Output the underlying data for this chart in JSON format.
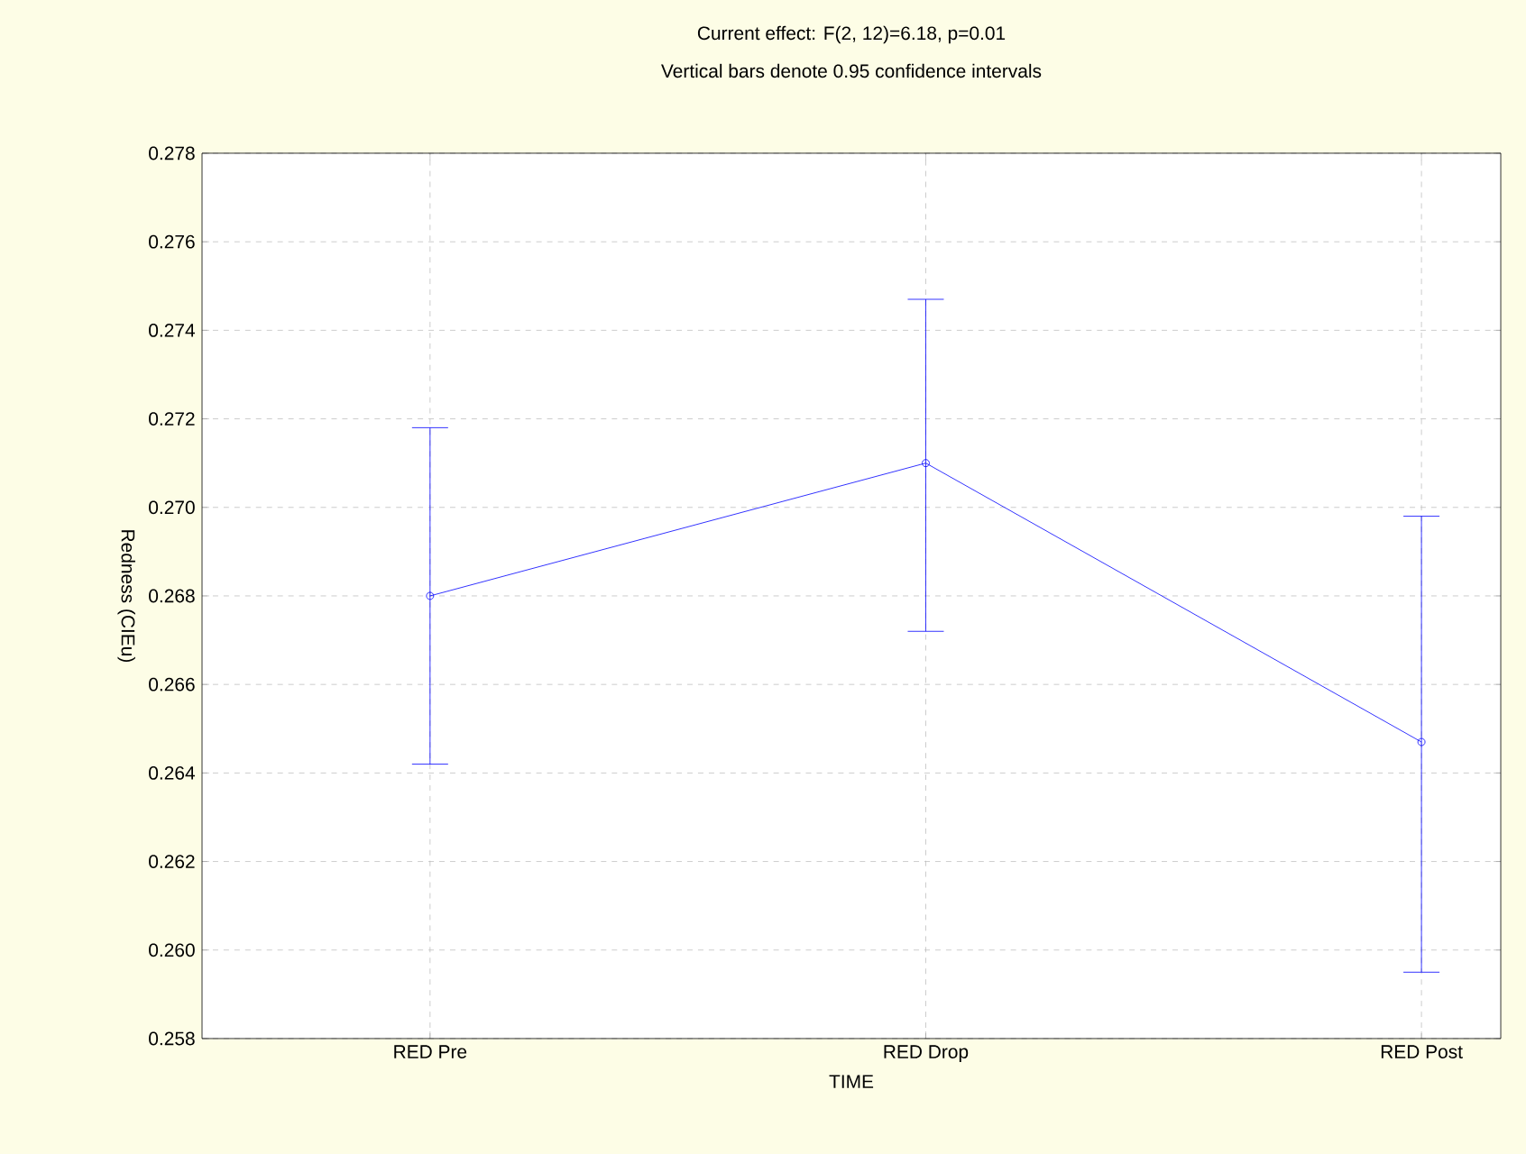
{
  "chart_data": {
    "type": "line",
    "title": "Current effect: F(2, 12)=6.18, p=0.01",
    "subtitle": "Vertical bars denote 0.95 confidence intervals",
    "xlabel": "TIME",
    "ylabel": "Redness (CIEu)",
    "categories": [
      "RED Pre",
      "RED Drop",
      "RED Post"
    ],
    "series": [
      {
        "color": "#0000ff",
        "values": [
          0.268,
          0.271,
          0.2647
        ],
        "errors": [
          [
            0.2642,
            0.2718
          ],
          [
            0.2672,
            0.2747
          ],
          [
            0.2595,
            0.2698
          ]
        ]
      }
    ],
    "ylim": [
      0.258,
      0.278
    ],
    "yticks": [
      {
        "value": 0.258,
        "label": "0.258"
      },
      {
        "value": 0.26,
        "label": "0.260"
      },
      {
        "value": 0.262,
        "label": "0.262"
      },
      {
        "value": 0.264,
        "label": "0.264"
      },
      {
        "value": 0.266,
        "label": "0.266"
      },
      {
        "value": 0.268,
        "label": "0.268"
      },
      {
        "value": 0.27,
        "label": "0.270"
      },
      {
        "value": 0.272,
        "label": "0.272"
      },
      {
        "value": 0.274,
        "label": "0.274"
      },
      {
        "value": 0.276,
        "label": "0.276"
      },
      {
        "value": 0.278,
        "label": "0.278"
      }
    ],
    "grid": true,
    "marker": "circle",
    "line_style": "solid"
  }
}
